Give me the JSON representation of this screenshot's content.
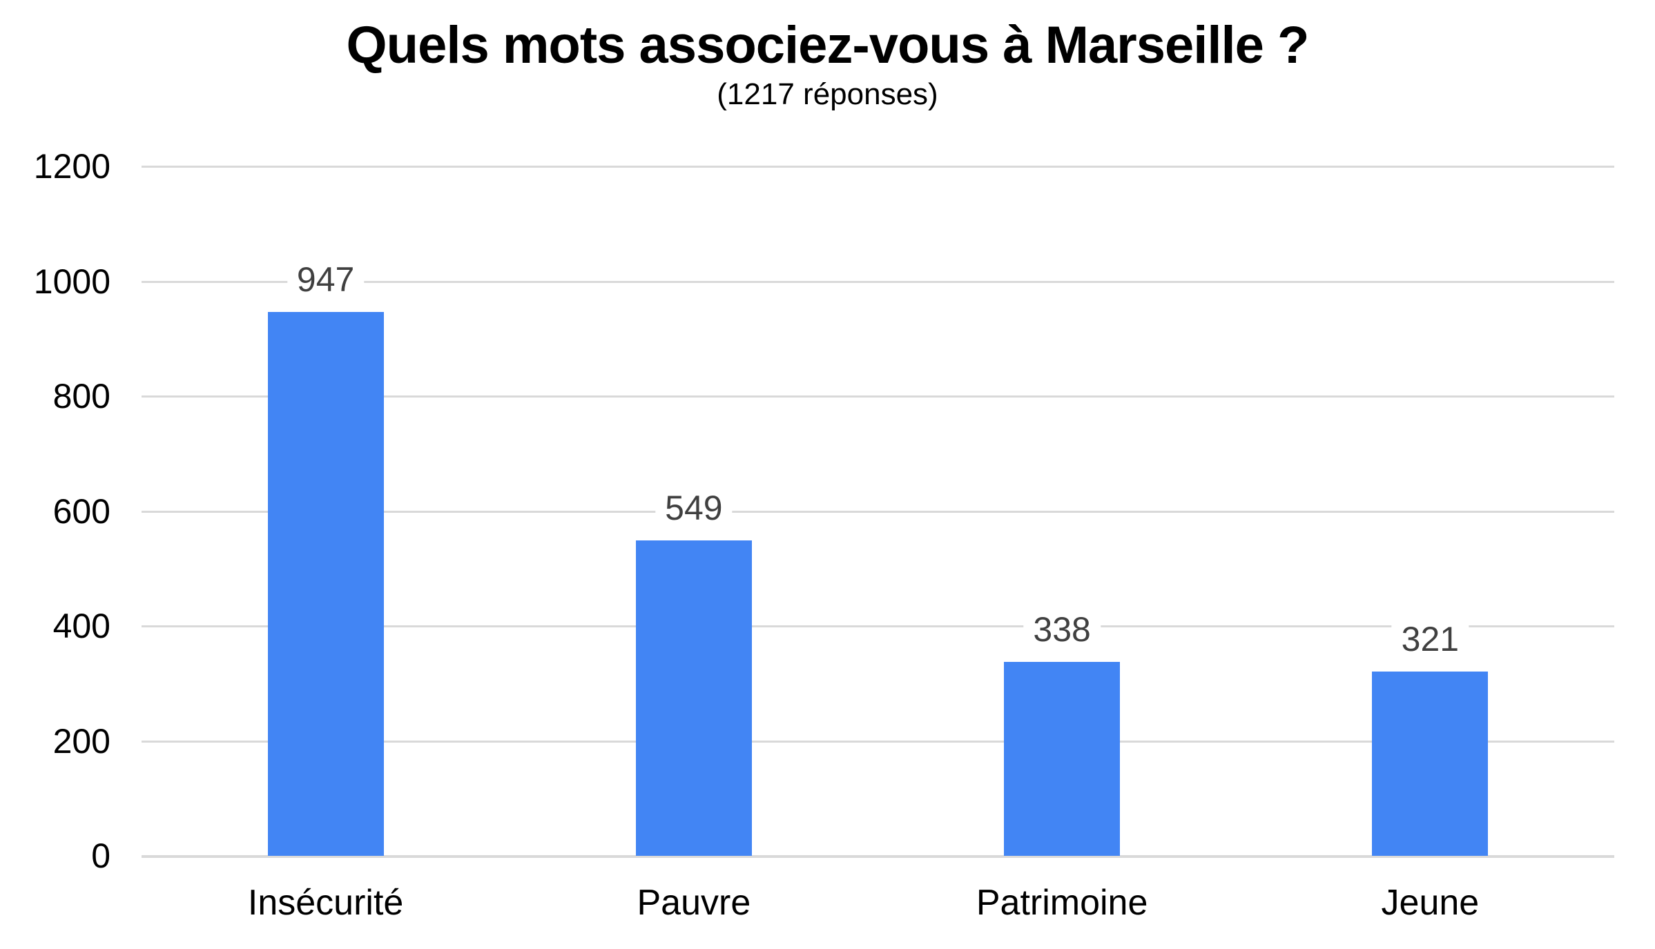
{
  "page": {
    "background_color": "#ffffff"
  },
  "chart_data": {
    "type": "bar",
    "title": "Quels mots associez-vous à Marseille ?",
    "subtitle": "(1217 réponses)",
    "categories": [
      "Insécurité",
      "Pauvre",
      "Patrimoine",
      "Jeune"
    ],
    "values": [
      947,
      549,
      338,
      321
    ],
    "data_labels": [
      "947",
      "549",
      "338",
      "321"
    ],
    "xlabel": "",
    "ylabel": "",
    "ylim": [
      0,
      1200
    ],
    "ytick_step": 200,
    "yticks": [
      "0",
      "200",
      "400",
      "600",
      "800",
      "1000",
      "1200"
    ],
    "grid": true,
    "legend": "none",
    "bar_color": "#4285f4",
    "value_label_color": "#404040",
    "axis_text_color": "#000000",
    "gridline_color": "#d9d9d9"
  }
}
